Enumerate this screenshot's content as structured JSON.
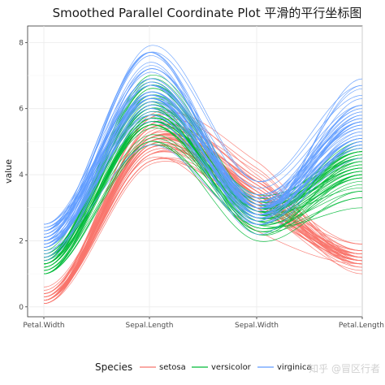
{
  "watermark": "知乎 @冒区行者",
  "chart_data": {
    "type": "line",
    "title": "Smoothed Parallel Coordinate Plot 平滑的平行坐标图",
    "xlabel": "",
    "ylabel": "value",
    "categories": [
      "Petal.Width",
      "Sepal.Length",
      "Sepal.Width",
      "Petal.Length"
    ],
    "ylim": [
      -0.3,
      8.5
    ],
    "yticks": [
      0,
      2,
      4,
      6,
      8
    ],
    "grid": true,
    "legend": {
      "title": "Species",
      "position": "bottom",
      "entries": [
        "setosa",
        "versicolor",
        "virginica"
      ]
    },
    "colors": {
      "setosa": "#F8766D",
      "versicolor": "#00BA38",
      "virginica": "#619CFF"
    },
    "series": [
      {
        "name": "setosa",
        "lines": [
          [
            0.2,
            5.1,
            3.5,
            1.4
          ],
          [
            0.2,
            4.9,
            3.0,
            1.4
          ],
          [
            0.2,
            4.7,
            3.2,
            1.3
          ],
          [
            0.2,
            4.6,
            3.1,
            1.5
          ],
          [
            0.2,
            5.0,
            3.6,
            1.4
          ],
          [
            0.4,
            5.4,
            3.9,
            1.7
          ],
          [
            0.3,
            4.6,
            3.4,
            1.4
          ],
          [
            0.2,
            5.0,
            3.4,
            1.5
          ],
          [
            0.2,
            4.4,
            2.9,
            1.4
          ],
          [
            0.1,
            4.9,
            3.1,
            1.5
          ],
          [
            0.2,
            5.4,
            3.7,
            1.5
          ],
          [
            0.2,
            4.8,
            3.4,
            1.6
          ],
          [
            0.1,
            4.8,
            3.0,
            1.4
          ],
          [
            0.1,
            4.3,
            3.0,
            1.1
          ],
          [
            0.2,
            5.8,
            4.0,
            1.2
          ],
          [
            0.4,
            5.7,
            4.4,
            1.5
          ],
          [
            0.4,
            5.4,
            3.9,
            1.3
          ],
          [
            0.3,
            5.1,
            3.5,
            1.4
          ],
          [
            0.3,
            5.7,
            3.8,
            1.7
          ],
          [
            0.3,
            5.1,
            3.8,
            1.5
          ],
          [
            0.2,
            5.4,
            3.4,
            1.7
          ],
          [
            0.4,
            5.1,
            3.7,
            1.5
          ],
          [
            0.2,
            4.6,
            3.6,
            1.0
          ],
          [
            0.5,
            5.1,
            3.3,
            1.7
          ],
          [
            0.2,
            4.8,
            3.4,
            1.9
          ],
          [
            0.2,
            5.0,
            3.0,
            1.6
          ],
          [
            0.4,
            5.0,
            3.4,
            1.6
          ],
          [
            0.2,
            5.2,
            3.5,
            1.5
          ],
          [
            0.2,
            5.2,
            3.4,
            1.4
          ],
          [
            0.2,
            4.7,
            3.2,
            1.6
          ],
          [
            0.2,
            4.8,
            3.1,
            1.6
          ],
          [
            0.4,
            5.4,
            3.4,
            1.5
          ],
          [
            0.1,
            5.2,
            4.1,
            1.5
          ],
          [
            0.2,
            5.5,
            4.2,
            1.4
          ],
          [
            0.2,
            4.9,
            3.1,
            1.5
          ],
          [
            0.2,
            5.0,
            3.2,
            1.2
          ],
          [
            0.2,
            5.5,
            3.5,
            1.3
          ],
          [
            0.1,
            4.9,
            3.6,
            1.4
          ],
          [
            0.2,
            4.4,
            3.0,
            1.3
          ],
          [
            0.2,
            5.1,
            3.4,
            1.5
          ],
          [
            0.3,
            5.0,
            3.5,
            1.3
          ],
          [
            0.3,
            4.5,
            2.3,
            1.3
          ],
          [
            0.2,
            4.4,
            3.2,
            1.3
          ],
          [
            0.6,
            5.0,
            3.5,
            1.6
          ],
          [
            0.4,
            5.1,
            3.8,
            1.9
          ],
          [
            0.3,
            4.8,
            3.0,
            1.4
          ],
          [
            0.2,
            5.1,
            3.8,
            1.6
          ],
          [
            0.2,
            4.6,
            3.2,
            1.4
          ],
          [
            0.2,
            5.3,
            3.7,
            1.5
          ],
          [
            0.2,
            5.0,
            3.3,
            1.4
          ]
        ]
      },
      {
        "name": "versicolor",
        "lines": [
          [
            1.4,
            7.0,
            3.2,
            4.7
          ],
          [
            1.5,
            6.4,
            3.2,
            4.5
          ],
          [
            1.5,
            6.9,
            3.1,
            4.9
          ],
          [
            1.3,
            5.5,
            2.3,
            4.0
          ],
          [
            1.5,
            6.5,
            2.8,
            4.6
          ],
          [
            1.3,
            5.7,
            2.8,
            4.5
          ],
          [
            1.6,
            6.3,
            3.3,
            4.7
          ],
          [
            1.0,
            4.9,
            2.4,
            3.3
          ],
          [
            1.3,
            6.6,
            2.9,
            4.6
          ],
          [
            1.4,
            5.2,
            2.7,
            3.9
          ],
          [
            1.0,
            5.0,
            2.0,
            3.5
          ],
          [
            1.5,
            5.9,
            3.0,
            4.2
          ],
          [
            1.0,
            6.0,
            2.2,
            4.0
          ],
          [
            1.4,
            6.1,
            2.9,
            4.7
          ],
          [
            1.3,
            5.6,
            2.9,
            3.6
          ],
          [
            1.4,
            6.7,
            3.1,
            4.4
          ],
          [
            1.5,
            5.6,
            3.0,
            4.5
          ],
          [
            1.0,
            5.8,
            2.7,
            4.1
          ],
          [
            1.5,
            6.2,
            2.2,
            4.5
          ],
          [
            1.1,
            5.6,
            2.5,
            3.9
          ],
          [
            1.8,
            5.9,
            3.2,
            4.8
          ],
          [
            1.3,
            6.1,
            2.8,
            4.0
          ],
          [
            1.5,
            6.3,
            2.5,
            4.9
          ],
          [
            1.2,
            6.1,
            2.8,
            4.7
          ],
          [
            1.3,
            6.4,
            2.9,
            4.3
          ],
          [
            1.4,
            6.6,
            3.0,
            4.4
          ],
          [
            1.4,
            6.8,
            2.8,
            4.8
          ],
          [
            1.7,
            6.7,
            3.0,
            5.0
          ],
          [
            1.5,
            6.0,
            2.9,
            4.5
          ],
          [
            1.0,
            5.7,
            2.6,
            3.5
          ],
          [
            1.1,
            5.5,
            2.4,
            3.8
          ],
          [
            1.0,
            5.5,
            2.4,
            3.7
          ],
          [
            1.2,
            5.8,
            2.7,
            3.9
          ],
          [
            1.6,
            6.0,
            2.7,
            5.1
          ],
          [
            1.5,
            5.4,
            3.0,
            4.5
          ],
          [
            1.6,
            6.0,
            3.4,
            4.5
          ],
          [
            1.5,
            6.7,
            3.1,
            4.7
          ],
          [
            1.3,
            6.3,
            2.3,
            4.4
          ],
          [
            1.3,
            5.6,
            3.0,
            4.1
          ],
          [
            1.3,
            5.5,
            2.5,
            4.0
          ],
          [
            1.2,
            5.5,
            2.6,
            4.4
          ],
          [
            1.4,
            6.1,
            3.0,
            4.6
          ],
          [
            1.2,
            5.8,
            2.6,
            4.0
          ],
          [
            1.0,
            5.0,
            2.3,
            3.3
          ],
          [
            1.3,
            5.6,
            2.7,
            4.2
          ],
          [
            1.2,
            5.7,
            3.0,
            4.2
          ],
          [
            1.3,
            5.7,
            2.9,
            4.2
          ],
          [
            1.3,
            6.2,
            2.9,
            4.3
          ],
          [
            1.1,
            5.1,
            2.5,
            3.0
          ],
          [
            1.3,
            5.7,
            2.8,
            4.1
          ]
        ]
      },
      {
        "name": "virginica",
        "lines": [
          [
            2.5,
            6.3,
            3.3,
            6.0
          ],
          [
            1.9,
            5.8,
            2.7,
            5.1
          ],
          [
            2.1,
            7.1,
            3.0,
            5.9
          ],
          [
            1.8,
            6.3,
            2.9,
            5.6
          ],
          [
            2.2,
            6.5,
            3.0,
            5.8
          ],
          [
            2.1,
            7.6,
            3.0,
            6.6
          ],
          [
            1.7,
            4.9,
            2.5,
            4.5
          ],
          [
            1.8,
            7.3,
            2.9,
            6.3
          ],
          [
            1.8,
            6.7,
            2.5,
            5.8
          ],
          [
            2.5,
            7.2,
            3.6,
            6.1
          ],
          [
            2.0,
            6.5,
            3.2,
            5.1
          ],
          [
            1.9,
            6.4,
            2.7,
            5.3
          ],
          [
            2.1,
            6.8,
            3.0,
            5.5
          ],
          [
            2.0,
            5.7,
            2.5,
            5.0
          ],
          [
            2.4,
            5.8,
            2.8,
            5.1
          ],
          [
            2.3,
            6.4,
            3.2,
            5.3
          ],
          [
            1.8,
            6.5,
            3.0,
            5.5
          ],
          [
            2.2,
            7.7,
            3.8,
            6.7
          ],
          [
            2.3,
            7.7,
            2.6,
            6.9
          ],
          [
            1.5,
            6.0,
            2.2,
            5.0
          ],
          [
            2.3,
            6.9,
            3.2,
            5.7
          ],
          [
            2.0,
            5.6,
            2.8,
            4.9
          ],
          [
            2.0,
            7.7,
            2.8,
            6.7
          ],
          [
            1.8,
            6.3,
            2.7,
            4.9
          ],
          [
            2.1,
            6.7,
            3.3,
            5.7
          ],
          [
            1.8,
            7.2,
            3.2,
            6.0
          ],
          [
            1.8,
            6.2,
            2.8,
            4.8
          ],
          [
            1.8,
            6.1,
            3.0,
            4.9
          ],
          [
            2.1,
            6.4,
            2.8,
            5.6
          ],
          [
            1.6,
            7.2,
            3.0,
            5.8
          ],
          [
            1.9,
            7.4,
            2.8,
            6.1
          ],
          [
            2.0,
            7.9,
            3.8,
            6.4
          ],
          [
            2.2,
            6.4,
            2.8,
            5.6
          ],
          [
            1.5,
            6.3,
            2.8,
            5.1
          ],
          [
            1.4,
            6.1,
            2.6,
            5.6
          ],
          [
            2.3,
            7.7,
            3.0,
            6.1
          ],
          [
            2.4,
            6.3,
            3.4,
            5.6
          ],
          [
            1.8,
            6.4,
            3.1,
            5.5
          ],
          [
            1.8,
            6.0,
            3.0,
            4.8
          ],
          [
            2.1,
            6.9,
            3.1,
            5.4
          ],
          [
            2.4,
            6.7,
            3.1,
            5.6
          ],
          [
            2.3,
            6.9,
            3.1,
            5.1
          ],
          [
            1.9,
            5.8,
            2.7,
            5.1
          ],
          [
            2.3,
            6.8,
            3.2,
            5.9
          ],
          [
            2.5,
            6.7,
            3.3,
            5.7
          ],
          [
            2.3,
            6.7,
            3.0,
            5.2
          ],
          [
            1.9,
            6.3,
            2.5,
            5.0
          ],
          [
            2.0,
            6.5,
            3.0,
            5.2
          ],
          [
            2.3,
            6.2,
            3.4,
            5.4
          ],
          [
            1.8,
            5.9,
            3.0,
            5.1
          ]
        ]
      }
    ]
  }
}
